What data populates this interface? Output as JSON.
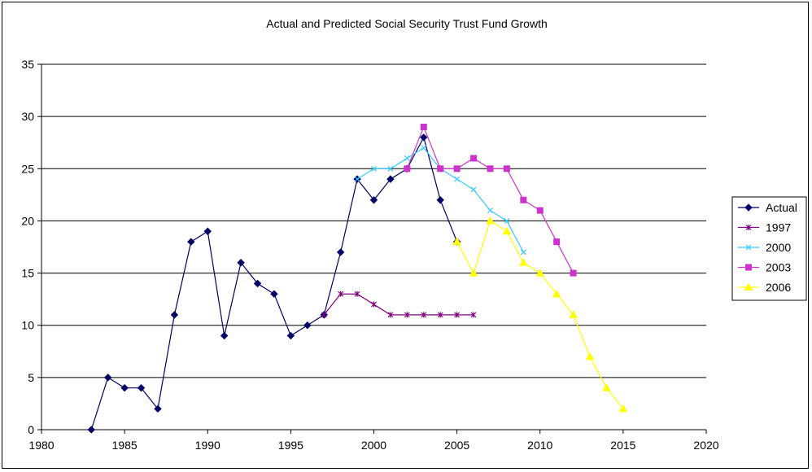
{
  "chart_data": {
    "type": "line",
    "title": "Actual and Predicted Social Security Trust Fund Growth",
    "xlabel": "",
    "ylabel": "",
    "xlim": [
      1980,
      2020
    ],
    "ylim": [
      0,
      35
    ],
    "x_ticks": [
      1980,
      1985,
      1990,
      1995,
      2000,
      2005,
      2010,
      2015,
      2020
    ],
    "y_ticks": [
      0,
      5,
      10,
      15,
      20,
      25,
      30,
      35
    ],
    "grid": "horizontal major gridlines",
    "legend_position": "right",
    "series": [
      {
        "name": "Actual",
        "color": "#000066",
        "marker": "diamond",
        "points": [
          [
            1983,
            0
          ],
          [
            1984,
            5
          ],
          [
            1985,
            4
          ],
          [
            1986,
            4
          ],
          [
            1987,
            2
          ],
          [
            1988,
            11
          ],
          [
            1989,
            18
          ],
          [
            1990,
            19
          ],
          [
            1991,
            9
          ],
          [
            1992,
            16
          ],
          [
            1993,
            14
          ],
          [
            1994,
            13
          ],
          [
            1995,
            9
          ],
          [
            1996,
            10
          ],
          [
            1997,
            11
          ],
          [
            1998,
            17
          ],
          [
            1999,
            24
          ],
          [
            2000,
            22
          ],
          [
            2001,
            24
          ],
          [
            2002,
            25
          ],
          [
            2003,
            28
          ],
          [
            2004,
            22
          ],
          [
            2005,
            18
          ]
        ]
      },
      {
        "name": "1997",
        "color": "#800080",
        "marker": "star",
        "points": [
          [
            1997,
            11
          ],
          [
            1998,
            13
          ],
          [
            1999,
            13
          ],
          [
            2000,
            12
          ],
          [
            2001,
            11
          ],
          [
            2002,
            11
          ],
          [
            2003,
            11
          ],
          [
            2004,
            11
          ],
          [
            2005,
            11
          ],
          [
            2006,
            11
          ]
        ]
      },
      {
        "name": "2000",
        "color": "#33CCFF",
        "marker": "x",
        "points": [
          [
            1999,
            24
          ],
          [
            2000,
            25
          ],
          [
            2001,
            25
          ],
          [
            2002,
            26
          ],
          [
            2003,
            27
          ],
          [
            2004,
            25
          ],
          [
            2005,
            24
          ],
          [
            2006,
            23
          ],
          [
            2007,
            21
          ],
          [
            2008,
            20
          ],
          [
            2009,
            17
          ]
        ]
      },
      {
        "name": "2003",
        "color": "#CC33CC",
        "marker": "square",
        "points": [
          [
            2002,
            25
          ],
          [
            2003,
            29
          ],
          [
            2004,
            25
          ],
          [
            2005,
            25
          ],
          [
            2006,
            26
          ],
          [
            2007,
            25
          ],
          [
            2008,
            25
          ],
          [
            2009,
            22
          ],
          [
            2010,
            21
          ],
          [
            2011,
            18
          ],
          [
            2012,
            15
          ]
        ]
      },
      {
        "name": "2006",
        "color": "#FFFF00",
        "marker": "triangle",
        "points": [
          [
            2005,
            18
          ],
          [
            2006,
            15
          ],
          [
            2007,
            20
          ],
          [
            2008,
            19
          ],
          [
            2009,
            16
          ],
          [
            2010,
            15
          ],
          [
            2011,
            13
          ],
          [
            2012,
            11
          ],
          [
            2013,
            7
          ],
          [
            2014,
            4
          ],
          [
            2015,
            2
          ]
        ]
      }
    ]
  }
}
